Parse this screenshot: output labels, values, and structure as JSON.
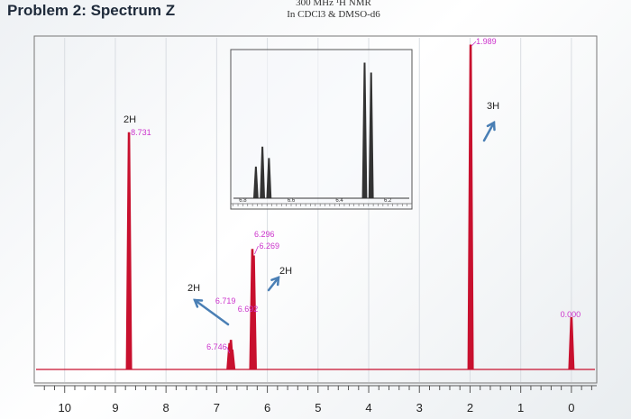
{
  "page": {
    "title": "Problem 2: Spectrum Z",
    "instrument": "300 MHz ¹H NMR",
    "solvent": "In CDCl3 & DMSO-d6"
  },
  "chart_data": {
    "type": "line",
    "title": "",
    "xlabel": "",
    "ylabel": "",
    "xlim": [
      10.6,
      -0.5
    ],
    "x_reversed": true,
    "x_ticks": [
      10,
      9,
      8,
      7,
      6,
      5,
      4,
      3,
      2,
      1,
      0
    ],
    "grid": true,
    "peaks": [
      {
        "ppm": 8.731,
        "label": "8.731",
        "rel_height": 0.73
      },
      {
        "ppm": 6.746,
        "label": "6.746",
        "rel_height": 0.08
      },
      {
        "ppm": 6.719,
        "label": "6.719",
        "rel_height": 0.09
      },
      {
        "ppm": 6.692,
        "label": "6.692",
        "rel_height": 0.06
      },
      {
        "ppm": 6.296,
        "label": "6.296",
        "rel_height": 0.37
      },
      {
        "ppm": 6.269,
        "label": "6.269",
        "rel_height": 0.35
      },
      {
        "ppm": 1.989,
        "label": "1.989",
        "rel_height": 1.0
      },
      {
        "ppm": 0.0,
        "label": "0.000",
        "rel_height": 0.16
      }
    ],
    "integrations": [
      {
        "label": "2H",
        "near_ppm": 8.731
      },
      {
        "label": "2H",
        "near_ppm": 6.72
      },
      {
        "label": "2H",
        "near_ppm": 6.28
      },
      {
        "label": "3H",
        "near_ppm": 1.989
      }
    ],
    "inset": {
      "xlim": [
        6.85,
        6.1
      ],
      "x_ticks": [
        "6.8",
        "6.6",
        "6.4",
        "6.2"
      ],
      "peaks": [
        {
          "ppm": 6.746,
          "rel_height": 0.22
        },
        {
          "ppm": 6.719,
          "rel_height": 0.36
        },
        {
          "ppm": 6.692,
          "rel_height": 0.28
        },
        {
          "ppm": 6.296,
          "rel_height": 0.95
        },
        {
          "ppm": 6.269,
          "rel_height": 0.88
        }
      ]
    },
    "colors": {
      "trace": "#c8102e",
      "label": "#cc33cc",
      "axis": "#555555"
    }
  }
}
